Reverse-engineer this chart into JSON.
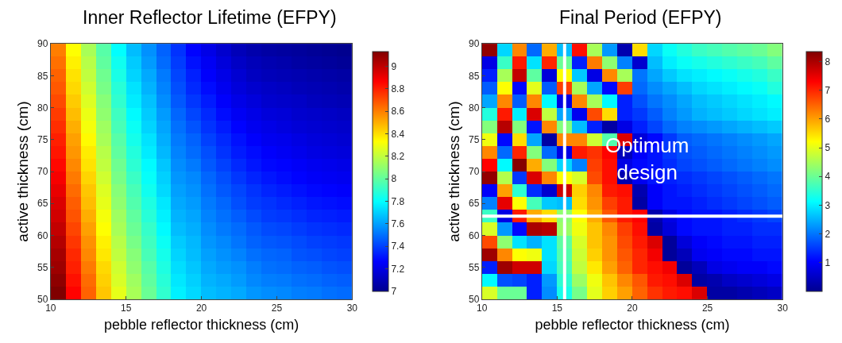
{
  "chart_data": [
    {
      "type": "heatmap",
      "title": "Inner Reflector Lifetime (EFPY)",
      "xlabel": "pebble reflector thickness (cm)",
      "ylabel": "active thickness (cm)",
      "x": [
        10.5,
        11.5,
        12.5,
        13.5,
        14.5,
        15.5,
        16.5,
        17.5,
        18.5,
        19.5,
        20.5,
        21.5,
        22.5,
        23.5,
        24.5,
        25.5,
        26.5,
        27.5,
        28.5,
        29.5
      ],
      "y": [
        89,
        87,
        85,
        83,
        81,
        79,
        77,
        75,
        73,
        71,
        69,
        67,
        65,
        63,
        61,
        59,
        57,
        55,
        53,
        51
      ],
      "cells": [
        [
          8.6,
          8.33,
          8.15,
          7.98,
          7.8,
          7.66,
          7.57,
          7.47,
          7.37,
          7.27,
          7.21,
          7.15,
          7.1,
          7.07,
          7.05,
          7.04,
          7.03,
          7.02,
          7.01,
          7.0
        ],
        [
          8.63,
          8.36,
          8.18,
          8.0,
          7.83,
          7.69,
          7.59,
          7.49,
          7.39,
          7.3,
          7.24,
          7.18,
          7.13,
          7.1,
          7.08,
          7.07,
          7.05,
          7.04,
          7.03,
          7.02
        ],
        [
          8.66,
          8.39,
          8.2,
          8.03,
          7.85,
          7.71,
          7.62,
          7.52,
          7.41,
          7.33,
          7.26,
          7.21,
          7.16,
          7.12,
          7.1,
          7.09,
          7.08,
          7.07,
          7.06,
          7.05
        ],
        [
          8.68,
          8.41,
          8.23,
          8.05,
          7.88,
          7.74,
          7.64,
          7.54,
          7.43,
          7.35,
          7.29,
          7.23,
          7.18,
          7.15,
          7.13,
          7.12,
          7.1,
          7.09,
          7.08,
          7.07
        ],
        [
          8.71,
          8.44,
          8.26,
          8.08,
          7.9,
          7.76,
          7.67,
          7.56,
          7.45,
          7.38,
          7.32,
          7.26,
          7.21,
          7.18,
          7.15,
          7.14,
          7.13,
          7.11,
          7.1,
          7.09
        ],
        [
          8.74,
          8.47,
          8.29,
          8.1,
          7.93,
          7.79,
          7.69,
          7.59,
          7.48,
          7.41,
          7.35,
          7.29,
          7.24,
          7.21,
          7.18,
          7.17,
          7.15,
          7.14,
          7.13,
          7.12
        ],
        [
          8.77,
          8.5,
          8.31,
          8.13,
          7.95,
          7.82,
          7.71,
          7.61,
          7.5,
          7.44,
          7.37,
          7.32,
          7.27,
          7.23,
          7.21,
          7.19,
          7.17,
          7.16,
          7.15,
          7.14
        ],
        [
          8.8,
          8.53,
          8.34,
          8.15,
          7.98,
          7.84,
          7.74,
          7.63,
          7.52,
          7.47,
          7.4,
          7.35,
          7.3,
          7.26,
          7.23,
          7.22,
          7.2,
          7.18,
          7.17,
          7.16
        ],
        [
          8.82,
          8.55,
          8.37,
          8.18,
          8.0,
          7.87,
          7.76,
          7.65,
          7.54,
          7.49,
          7.43,
          7.37,
          7.32,
          7.29,
          7.26,
          7.24,
          7.22,
          7.2,
          7.19,
          7.18
        ],
        [
          8.85,
          8.58,
          8.39,
          8.2,
          8.03,
          7.89,
          7.79,
          7.68,
          7.56,
          7.52,
          7.45,
          7.4,
          7.35,
          7.31,
          7.28,
          7.27,
          7.25,
          7.23,
          7.22,
          7.21
        ],
        [
          8.88,
          8.61,
          8.42,
          8.23,
          8.05,
          7.92,
          7.81,
          7.7,
          7.58,
          7.55,
          7.48,
          7.43,
          7.38,
          7.34,
          7.31,
          7.29,
          7.27,
          7.25,
          7.24,
          7.23
        ],
        [
          8.91,
          8.64,
          8.45,
          8.26,
          8.08,
          7.95,
          7.83,
          7.72,
          7.6,
          7.57,
          7.5,
          7.45,
          7.41,
          7.37,
          7.34,
          7.32,
          7.3,
          7.28,
          7.27,
          7.26
        ],
        [
          8.94,
          8.67,
          8.47,
          8.28,
          8.1,
          7.97,
          7.86,
          7.75,
          7.62,
          7.59,
          7.52,
          7.48,
          7.43,
          7.39,
          7.37,
          7.35,
          7.33,
          7.31,
          7.3,
          7.29
        ],
        [
          8.96,
          8.69,
          8.5,
          8.31,
          8.13,
          8.0,
          7.88,
          7.77,
          7.64,
          7.61,
          7.54,
          7.5,
          7.46,
          7.42,
          7.39,
          7.38,
          7.36,
          7.34,
          7.33,
          7.32
        ],
        [
          8.99,
          8.72,
          8.53,
          8.33,
          8.15,
          8.02,
          7.91,
          7.79,
          7.66,
          7.63,
          7.56,
          7.52,
          7.49,
          7.45,
          7.42,
          7.41,
          7.39,
          7.37,
          7.36,
          7.35
        ],
        [
          9.02,
          8.75,
          8.56,
          8.36,
          8.18,
          8.05,
          7.93,
          7.82,
          7.69,
          7.65,
          7.58,
          7.55,
          7.51,
          7.47,
          7.45,
          7.44,
          7.42,
          7.4,
          7.39,
          7.38
        ],
        [
          9.05,
          8.78,
          8.58,
          8.38,
          8.2,
          8.08,
          7.95,
          7.84,
          7.71,
          7.66,
          7.6,
          7.57,
          7.54,
          7.5,
          7.48,
          7.47,
          7.44,
          7.43,
          7.41,
          7.4
        ],
        [
          9.07,
          8.8,
          8.61,
          8.41,
          8.23,
          8.1,
          7.98,
          7.86,
          7.73,
          7.68,
          7.62,
          7.59,
          7.57,
          7.53,
          7.5,
          7.49,
          7.47,
          7.46,
          7.44,
          7.43
        ],
        [
          9.1,
          8.83,
          8.64,
          8.43,
          8.25,
          8.13,
          8.0,
          7.88,
          7.75,
          7.7,
          7.64,
          7.62,
          7.59,
          7.55,
          7.53,
          7.52,
          7.5,
          7.49,
          7.47,
          7.46
        ],
        [
          9.13,
          8.86,
          8.66,
          8.45,
          8.28,
          8.15,
          8.02,
          7.9,
          7.77,
          7.72,
          7.66,
          7.64,
          7.62,
          7.58,
          7.56,
          7.55,
          7.53,
          7.52,
          7.5,
          7.49
        ]
      ],
      "xlim": [
        10,
        30
      ],
      "xticks": [
        10,
        15,
        20,
        25,
        30
      ],
      "ylim": [
        50,
        90
      ],
      "yticks": [
        50,
        55,
        60,
        65,
        70,
        75,
        80,
        85,
        90
      ],
      "clim": [
        7,
        9.13
      ],
      "cticks": [
        7,
        7.2,
        7.4,
        7.6,
        7.8,
        8,
        8.2,
        8.4,
        8.6,
        8.8,
        9
      ]
    },
    {
      "type": "heatmap",
      "title": "Final Period (EFPY)",
      "xlabel": "pebble reflector thickness (cm)",
      "ylabel": "active thickness (cm)",
      "x": [
        10.5,
        11.5,
        12.5,
        13.5,
        14.5,
        15.5,
        16.5,
        17.5,
        18.5,
        19.5,
        20.5,
        21.5,
        22.5,
        23.5,
        24.5,
        25.5,
        26.5,
        27.5,
        28.5,
        29.5
      ],
      "y": [
        89,
        87,
        85,
        83,
        81,
        79,
        77,
        75,
        73,
        71,
        69,
        67,
        65,
        63,
        61,
        59,
        57,
        55,
        53,
        51
      ],
      "cells": [
        [
          8.2,
          2.8,
          6.2,
          1.9,
          5.9,
          2.6,
          7.2,
          4.5,
          2.3,
          0.3,
          5.5,
          2.8,
          3.2,
          3.4,
          3.6,
          3.7,
          3.8,
          3.9,
          4.0,
          4.2
        ],
        [
          0.8,
          3.6,
          7.1,
          2.9,
          7.0,
          4.0,
          1.3,
          6.3,
          4.3,
          2.1,
          0.6,
          2.6,
          3.0,
          3.2,
          3.3,
          3.4,
          3.5,
          3.6,
          3.7,
          3.9
        ],
        [
          1.3,
          4.5,
          7.8,
          3.9,
          0.7,
          5.2,
          2.7,
          0.8,
          6.2,
          4.5,
          2.0,
          2.4,
          2.7,
          2.9,
          3.0,
          3.1,
          3.2,
          3.3,
          3.4,
          3.6
        ],
        [
          1.8,
          5.2,
          1.1,
          5.0,
          1.8,
          6.8,
          4.5,
          2.4,
          1.1,
          6.8,
          1.9,
          2.2,
          2.4,
          2.6,
          2.8,
          2.9,
          3.0,
          3.1,
          3.2,
          3.4
        ],
        [
          2.4,
          6.2,
          1.8,
          6.2,
          3.1,
          0.8,
          6.2,
          4.5,
          3.1,
          1.3,
          1.7,
          2.0,
          2.2,
          2.4,
          2.6,
          2.7,
          2.8,
          2.9,
          3.0,
          3.1
        ],
        [
          3.4,
          7.1,
          3.0,
          7.6,
          4.7,
          2.4,
          0.9,
          6.7,
          5.5,
          1.3,
          1.5,
          1.8,
          2.1,
          2.3,
          2.5,
          2.6,
          2.7,
          2.8,
          2.9,
          3.0
        ],
        [
          4.2,
          7.9,
          4.2,
          1.2,
          6.2,
          4.2,
          2.6,
          1.3,
          0.2,
          0.8,
          1.3,
          1.6,
          1.9,
          2.1,
          2.2,
          2.3,
          2.4,
          2.5,
          2.6,
          2.7
        ],
        [
          5.1,
          1.1,
          5.5,
          2.4,
          0.2,
          6.2,
          6.2,
          4.8,
          3.8,
          7.6,
          0.7,
          1.1,
          1.5,
          1.8,
          1.9,
          2.0,
          2.1,
          2.2,
          2.3,
          2.4
        ],
        [
          6.2,
          1.9,
          7.0,
          4.2,
          1.9,
          0.8,
          7.1,
          6.9,
          7.3,
          0.4,
          1.0,
          1.2,
          1.5,
          1.7,
          1.8,
          1.9,
          2.0,
          2.1,
          2.2,
          2.3
        ],
        [
          7.3,
          3.1,
          8.3,
          5.9,
          4.2,
          2.8,
          2.1,
          6.8,
          7.2,
          0.8,
          1.1,
          1.2,
          1.4,
          1.6,
          1.7,
          1.8,
          1.9,
          2.0,
          2.1,
          2.2
        ],
        [
          8.2,
          4.6,
          1.5,
          7.6,
          6.2,
          5.2,
          4.9,
          6.7,
          7.2,
          0.3,
          0.9,
          1.2,
          1.3,
          1.4,
          1.5,
          1.6,
          1.7,
          1.8,
          1.9,
          2.0
        ],
        [
          1.0,
          6.0,
          3.5,
          1.4,
          0.6,
          7.7,
          5.6,
          6.2,
          7.1,
          7.2,
          0.3,
          1.0,
          1.2,
          1.3,
          1.4,
          1.5,
          1.6,
          1.7,
          1.8,
          1.9
        ],
        [
          2.1,
          7.5,
          5.2,
          3.7,
          2.7,
          2.6,
          5.5,
          6.1,
          6.8,
          7.1,
          0.2,
          1.0,
          1.2,
          1.2,
          1.3,
          1.4,
          1.5,
          1.6,
          1.7,
          1.8
        ],
        [
          3.6,
          0.8,
          7.1,
          5.9,
          5.5,
          4.3,
          5.2,
          5.9,
          6.6,
          7.1,
          7.3,
          0.3,
          0.8,
          1.1,
          1.2,
          1.2,
          1.3,
          1.4,
          1.5,
          1.6
        ],
        [
          4.9,
          2.3,
          1.1,
          8.0,
          7.9,
          4.4,
          5.1,
          5.7,
          6.2,
          6.8,
          7.2,
          0.2,
          0.7,
          1.1,
          1.2,
          1.2,
          1.3,
          1.3,
          1.4,
          1.4
        ],
        [
          6.7,
          4.3,
          2.9,
          2.5,
          2.9,
          3.9,
          4.9,
          5.7,
          6.1,
          6.7,
          7.1,
          7.6,
          0.1,
          0.7,
          1.0,
          1.1,
          1.2,
          1.2,
          1.3,
          1.3
        ],
        [
          8.1,
          6.2,
          5.2,
          5.1,
          2.9,
          3.8,
          4.8,
          5.6,
          6.1,
          6.6,
          7.0,
          7.4,
          0.1,
          0.4,
          0.9,
          1.0,
          1.1,
          1.1,
          1.2,
          1.2
        ],
        [
          1.3,
          8.1,
          7.7,
          7.7,
          2.8,
          3.7,
          4.7,
          5.4,
          6.0,
          6.5,
          7.0,
          7.2,
          7.4,
          0.1,
          0.4,
          0.8,
          0.9,
          1.0,
          1.0,
          1.1
        ],
        [
          3.1,
          1.7,
          1.6,
          1.3,
          2.3,
          3.5,
          4.4,
          5.1,
          5.7,
          6.2,
          6.6,
          7.1,
          7.2,
          7.6,
          0.2,
          0.3,
          0.5,
          0.6,
          0.7,
          0.8
        ],
        [
          4.9,
          4.0,
          4.0,
          1.3,
          2.2,
          3.3,
          4.1,
          5.0,
          5.6,
          6.0,
          6.5,
          6.9,
          7.1,
          7.2,
          7.6,
          0.2,
          0.2,
          0.3,
          0.4,
          0.5
        ]
      ],
      "xlim": [
        10,
        30
      ],
      "xticks": [
        10,
        15,
        20,
        25,
        30
      ],
      "ylim": [
        50,
        90
      ],
      "yticks": [
        50,
        55,
        60,
        65,
        70,
        75,
        80,
        85,
        90
      ],
      "clim": [
        0,
        8.35
      ],
      "cticks": [
        1,
        2,
        3,
        4,
        5,
        6,
        7,
        8
      ],
      "ref_lines": [
        {
          "axis": "x",
          "value": 15.5,
          "color": "#ffffff"
        },
        {
          "axis": "y",
          "value": 63,
          "color": "#ffffff"
        }
      ],
      "annotations": [
        "Optimum\ndesign"
      ]
    }
  ]
}
